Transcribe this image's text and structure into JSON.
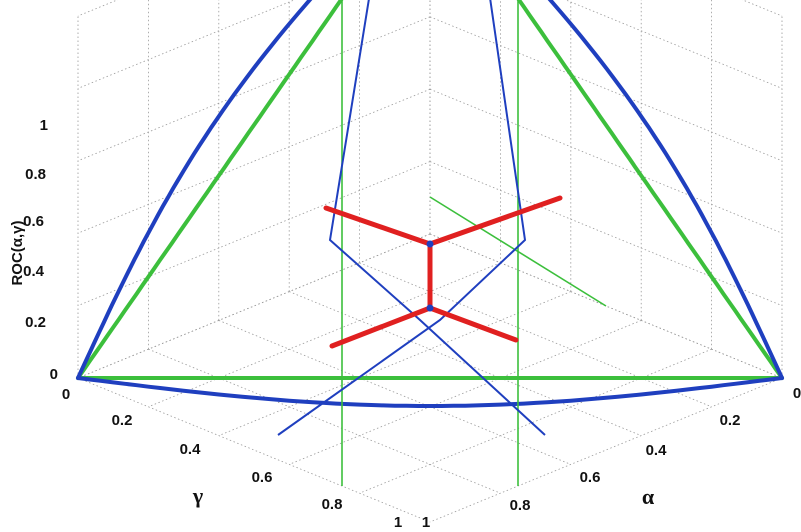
{
  "chart_data": {
    "type": "surface3d",
    "zlabel": "ROC(α,γ)",
    "xlabel": "γ",
    "ylabel": "α",
    "ticks": {
      "z": [
        "0",
        "0.2",
        "0.4",
        "0.6",
        "0.8",
        "1"
      ],
      "gamma": [
        "0",
        "0.2",
        "0.4",
        "0.6",
        "0.8",
        "1"
      ],
      "alpha": [
        "0",
        "0.2",
        "0.4",
        "0.6",
        "0.8",
        "1"
      ]
    },
    "zlim": [
      0,
      1
    ],
    "gamma_lim": [
      0,
      1
    ],
    "alpha_lim": [
      0,
      1
    ],
    "grid": true,
    "colors": {
      "blue_curves": "#1f3fbf",
      "green_curves": "#3cbf3c",
      "red_segments": "#e02020",
      "grid": "#9a9a9a"
    }
  }
}
